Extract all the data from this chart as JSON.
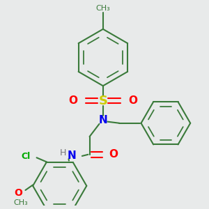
{
  "background_color": "#e8eaea",
  "bond_color": "#3a7a3a",
  "bond_width": 1.5,
  "atom_colors": {
    "S": "#cccc00",
    "O": "#ff0000",
    "N": "#0000ee",
    "Cl": "#00aa00",
    "H": "#777777",
    "C": "#3a7a3a"
  },
  "methyl_label": "CH₃",
  "methoxy_label": "O",
  "methoxy_ch3": "CH₃"
}
